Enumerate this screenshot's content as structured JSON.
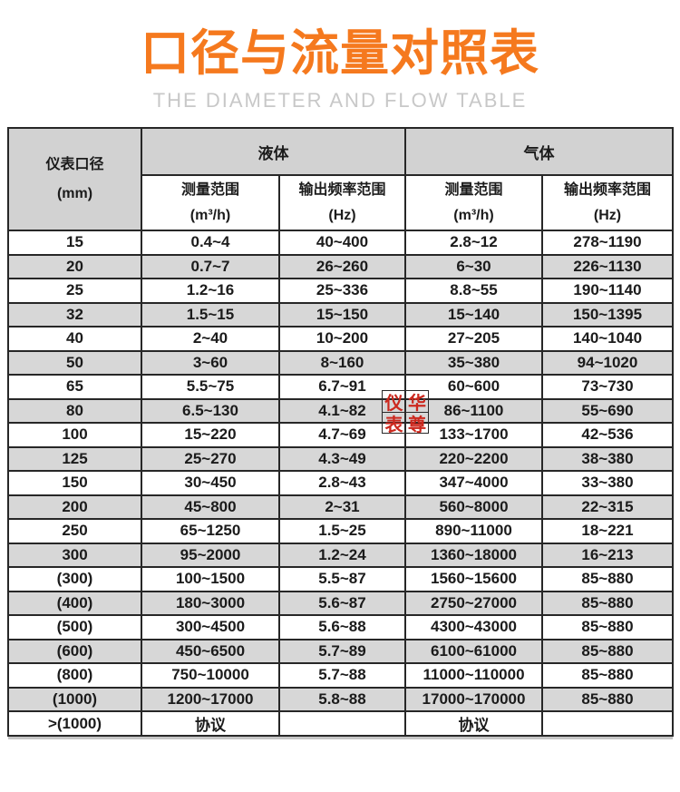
{
  "page": {
    "title": "口径与流量对照表",
    "subtitle": "THE DIAMETER AND FLOW TABLE"
  },
  "colors": {
    "accent_orange": "#f5791e",
    "subtitle_gray": "#c8c8c8",
    "header_cell_gray": "#d2d2d2",
    "alt_row_gray": "#d7d7d7",
    "border_dark": "#272727",
    "text_dark": "#1b1b1b",
    "watermark_red": "#cc281e"
  },
  "table": {
    "header": {
      "diameter_label": "仪表口径",
      "diameter_unit": "(mm)",
      "liquid_label": "液体",
      "gas_label": "气体",
      "measure_range_label": "测量范围",
      "measure_range_unit": "(m³/h)",
      "freq_range_label": "输出频率范围",
      "freq_range_unit": "(Hz)"
    },
    "rows": [
      {
        "diameter": "15",
        "liquid_range": "0.4~4",
        "liquid_freq": "40~400",
        "gas_range": "2.8~12",
        "gas_freq": "278~1190"
      },
      {
        "diameter": "20",
        "liquid_range": "0.7~7",
        "liquid_freq": "26~260",
        "gas_range": "6~30",
        "gas_freq": "226~1130"
      },
      {
        "diameter": "25",
        "liquid_range": "1.2~16",
        "liquid_freq": "25~336",
        "gas_range": "8.8~55",
        "gas_freq": "190~1140"
      },
      {
        "diameter": "32",
        "liquid_range": "1.5~15",
        "liquid_freq": "15~150",
        "gas_range": "15~140",
        "gas_freq": "150~1395"
      },
      {
        "diameter": "40",
        "liquid_range": "2~40",
        "liquid_freq": "10~200",
        "gas_range": "27~205",
        "gas_freq": "140~1040"
      },
      {
        "diameter": "50",
        "liquid_range": "3~60",
        "liquid_freq": "8~160",
        "gas_range": "35~380",
        "gas_freq": "94~1020"
      },
      {
        "diameter": "65",
        "liquid_range": "5.5~75",
        "liquid_freq": "6.7~91",
        "gas_range": "60~600",
        "gas_freq": "73~730"
      },
      {
        "diameter": "80",
        "liquid_range": "6.5~130",
        "liquid_freq": "4.1~82",
        "gas_range": "86~1100",
        "gas_freq": "55~690"
      },
      {
        "diameter": "100",
        "liquid_range": "15~220",
        "liquid_freq": "4.7~69",
        "gas_range": "133~1700",
        "gas_freq": "42~536"
      },
      {
        "diameter": "125",
        "liquid_range": "25~270",
        "liquid_freq": "4.3~49",
        "gas_range": "220~2200",
        "gas_freq": "38~380"
      },
      {
        "diameter": "150",
        "liquid_range": "30~450",
        "liquid_freq": "2.8~43",
        "gas_range": "347~4000",
        "gas_freq": "33~380"
      },
      {
        "diameter": "200",
        "liquid_range": "45~800",
        "liquid_freq": "2~31",
        "gas_range": "560~8000",
        "gas_freq": "22~315"
      },
      {
        "diameter": "250",
        "liquid_range": "65~1250",
        "liquid_freq": "1.5~25",
        "gas_range": "890~11000",
        "gas_freq": "18~221"
      },
      {
        "diameter": "300",
        "liquid_range": "95~2000",
        "liquid_freq": "1.2~24",
        "gas_range": "1360~18000",
        "gas_freq": "16~213"
      },
      {
        "diameter": "(300)",
        "liquid_range": "100~1500",
        "liquid_freq": "5.5~87",
        "gas_range": "1560~15600",
        "gas_freq": "85~880"
      },
      {
        "diameter": "(400)",
        "liquid_range": "180~3000",
        "liquid_freq": "5.6~87",
        "gas_range": "2750~27000",
        "gas_freq": "85~880"
      },
      {
        "diameter": "(500)",
        "liquid_range": "300~4500",
        "liquid_freq": "5.6~88",
        "gas_range": "4300~43000",
        "gas_freq": "85~880"
      },
      {
        "diameter": "(600)",
        "liquid_range": "450~6500",
        "liquid_freq": "5.7~89",
        "gas_range": "6100~61000",
        "gas_freq": "85~880"
      },
      {
        "diameter": "(800)",
        "liquid_range": "750~10000",
        "liquid_freq": "5.7~88",
        "gas_range": "11000~110000",
        "gas_freq": "85~880"
      },
      {
        "diameter": "(1000)",
        "liquid_range": "1200~17000",
        "liquid_freq": "5.8~88",
        "gas_range": "17000~170000",
        "gas_freq": "85~880"
      },
      {
        "diameter": ">(1000)",
        "liquid_range": "协议",
        "liquid_freq": "",
        "gas_range": "协议",
        "gas_freq": ""
      }
    ]
  },
  "watermark": {
    "chars": [
      "仪",
      "华",
      "表",
      "尊"
    ]
  }
}
